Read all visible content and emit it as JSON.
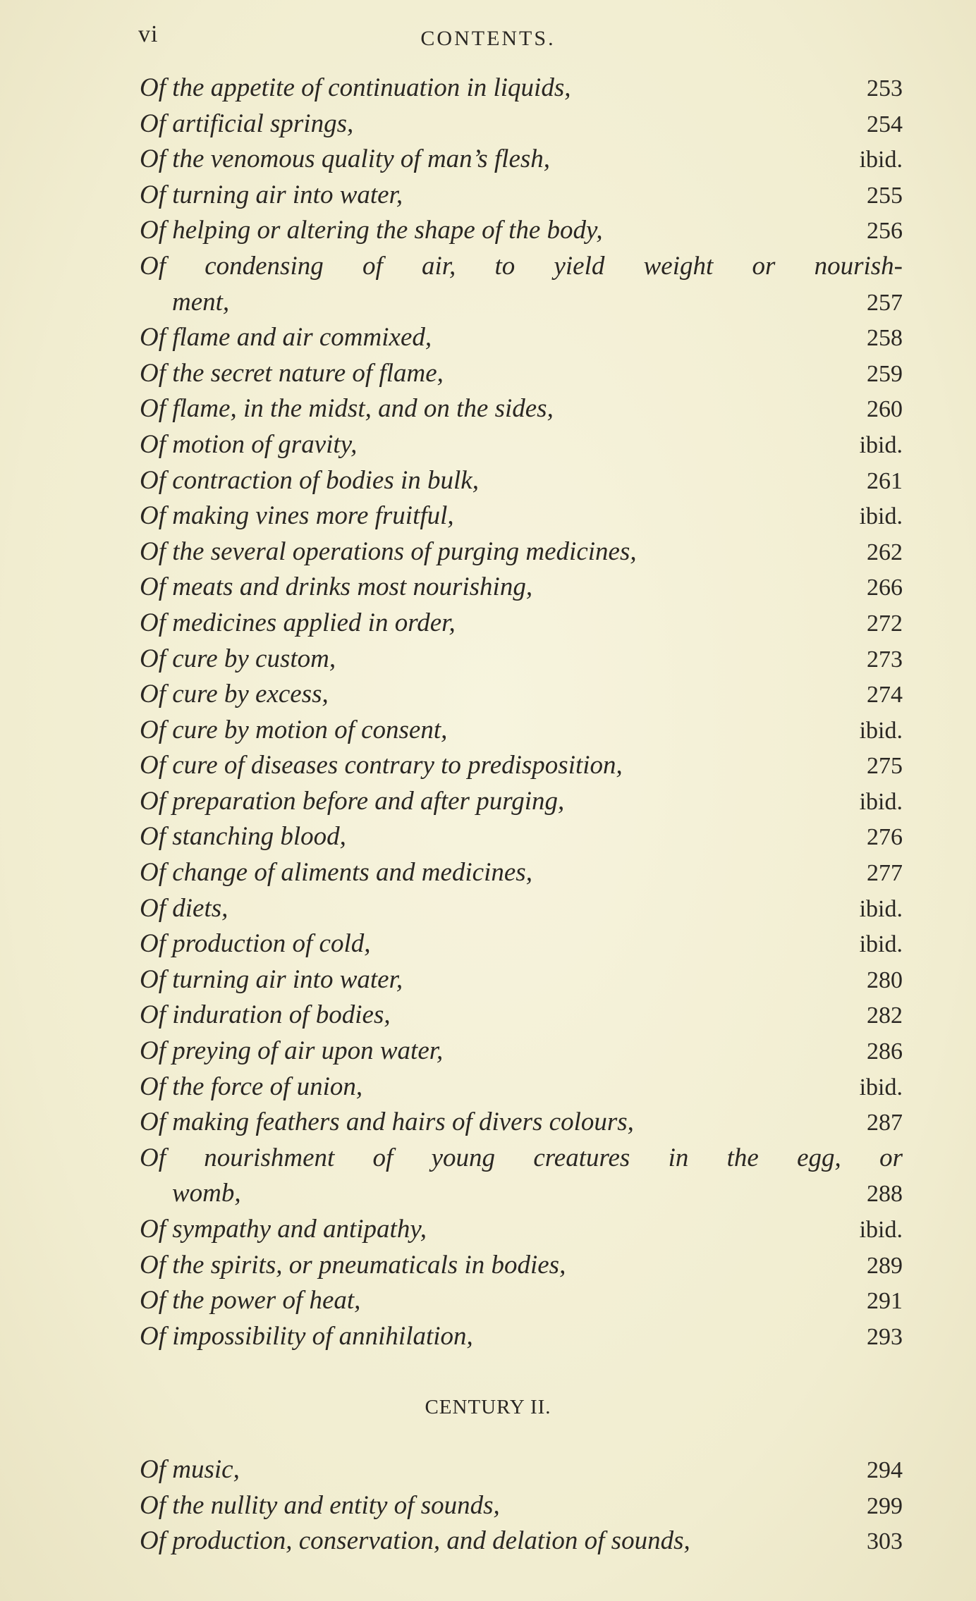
{
  "header": {
    "folio": "vi",
    "running_title": "CONTENTS."
  },
  "entries": [
    {
      "title": "Of the appetite of continuation in liquids,",
      "page": "253"
    },
    {
      "title": "Of artificial springs,",
      "page": "254"
    },
    {
      "title": "Of the venomous quality of man’s flesh,",
      "page": "ibid."
    },
    {
      "title": "Of turning air into water,",
      "page": "255"
    },
    {
      "title": "Of helping or altering the shape of the body,",
      "page": "256"
    },
    {
      "title": "Of condensing of air, to yield weight or nourish-",
      "cont": "ment,",
      "page": "257"
    },
    {
      "title": "Of flame and air commixed,",
      "page": "258"
    },
    {
      "title": "Of the secret nature of flame,",
      "page": "259"
    },
    {
      "title": "Of flame, in the midst, and on the sides,",
      "page": "260"
    },
    {
      "title": "Of motion of gravity,",
      "page": "ibid."
    },
    {
      "title": "Of contraction of bodies in bulk,",
      "page": "261"
    },
    {
      "title": "Of making vines more fruitful,",
      "page": "ibid."
    },
    {
      "title": "Of the several operations of purging medicines,",
      "page": "262"
    },
    {
      "title": "Of meats and drinks most nourishing,",
      "page": "266"
    },
    {
      "title": "Of medicines applied in order,",
      "page": "272"
    },
    {
      "title": "Of cure by custom,",
      "page": "273"
    },
    {
      "title": "Of cure by excess,",
      "page": "274"
    },
    {
      "title": "Of cure by motion of consent,",
      "page": "ibid."
    },
    {
      "title": "Of cure of diseases contrary to predisposition,",
      "page": "275"
    },
    {
      "title": "Of preparation before and after purging,",
      "page": "ibid."
    },
    {
      "title": "Of stanching blood,",
      "page": "276"
    },
    {
      "title": "Of change of aliments and medicines,",
      "page": "277"
    },
    {
      "title": "Of diets,",
      "page": "ibid."
    },
    {
      "title": "Of production of cold,",
      "page": "ibid."
    },
    {
      "title": "Of turning air into water,",
      "page": "280"
    },
    {
      "title": "Of induration of bodies,",
      "page": "282"
    },
    {
      "title": "Of preying of air upon water,",
      "page": "286"
    },
    {
      "title": "Of the force of union,",
      "page": "ibid."
    },
    {
      "title": "Of making feathers and hairs of divers colours,",
      "page": "287"
    },
    {
      "title": "Of nourishment of young creatures in the egg, or",
      "cont": "womb,",
      "page": "288"
    },
    {
      "title": "Of sympathy and antipathy,",
      "page": "ibid."
    },
    {
      "title": "Of the spirits, or pneumaticals in bodies,",
      "page": "289"
    },
    {
      "title": "Of the power of heat,",
      "page": "291"
    },
    {
      "title": "Of impossibility of annihilation,",
      "page": "293"
    }
  ],
  "section2": {
    "heading": "CENTURY II.",
    "entries": [
      {
        "title": "Of music,",
        "page": "294"
      },
      {
        "title": "Of the nullity and entity of sounds,",
        "page": "299"
      },
      {
        "title": "Of production, conservation, and delation of sounds,",
        "page": "303"
      }
    ]
  }
}
